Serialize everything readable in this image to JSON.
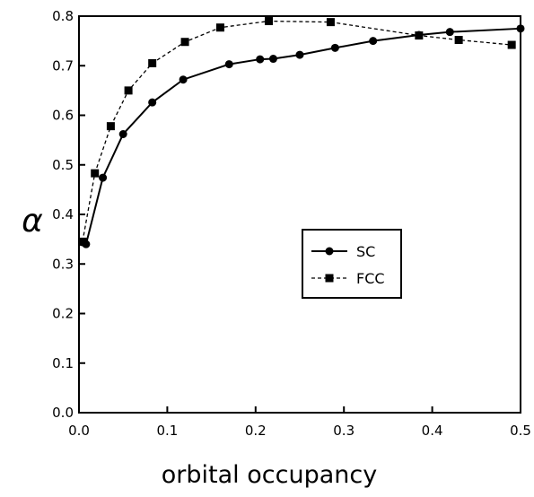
{
  "chart_data": {
    "type": "line",
    "xlabel": "orbital occupancy",
    "ylabel": "α",
    "xlim": [
      0,
      0.5
    ],
    "ylim": [
      0,
      0.8
    ],
    "xticks": [
      {
        "value": 0,
        "label": "0.0"
      },
      0.1,
      0.2,
      0.3,
      0.4,
      0.5
    ],
    "yticks": [
      {
        "value": 0,
        "label": "0.0"
      },
      0.1,
      0.2,
      0.3,
      0.4,
      0.5,
      0.6,
      0.7,
      0.8
    ],
    "legend": "center-right",
    "series": [
      {
        "name": "SC",
        "color": "#000000",
        "marker": "circle",
        "dash": false,
        "x": [
          0.004,
          0.008,
          0.027,
          0.05,
          0.083,
          0.118,
          0.17,
          0.205,
          0.22,
          0.25,
          0.29,
          0.333,
          0.385,
          0.42,
          0.5
        ],
        "values": [
          0.344,
          0.34,
          0.474,
          0.562,
          0.626,
          0.672,
          0.703,
          0.713,
          0.714,
          0.722,
          0.736,
          0.75,
          0.762,
          0.768,
          0.775
        ]
      },
      {
        "name": "FCC",
        "color": "#000000",
        "marker": "square",
        "dash": true,
        "x": [
          0.004,
          0.018,
          0.036,
          0.056,
          0.083,
          0.12,
          0.16,
          0.215,
          0.285,
          0.385,
          0.43,
          0.49
        ],
        "values": [
          0.345,
          0.483,
          0.578,
          0.65,
          0.705,
          0.748,
          0.777,
          0.79,
          0.788,
          0.761,
          0.752,
          0.742
        ]
      }
    ]
  }
}
